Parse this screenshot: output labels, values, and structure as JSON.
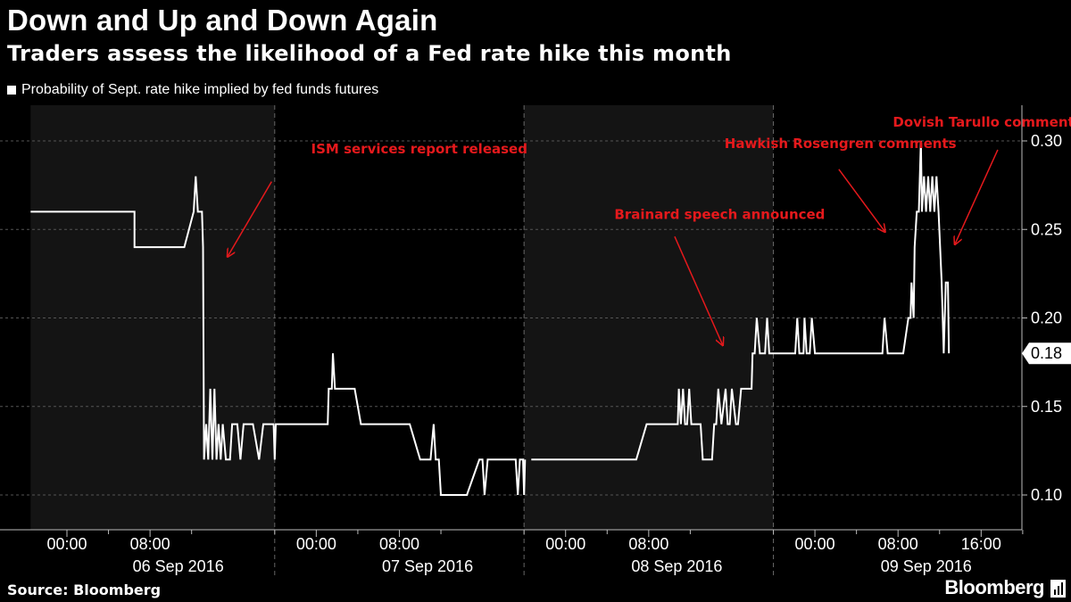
{
  "title": "Down and Up and Down Again",
  "subtitle": "Traders assess the likelihood of a Fed rate hike this month",
  "legend_label": "Probability of Sept. rate hike implied by fed funds futures",
  "source": "Source: Bloomberg",
  "brand": "Bloomberg",
  "colors": {
    "background": "#000000",
    "line": "#ffffff",
    "annotation": "#e5191c",
    "shade": "#141414"
  },
  "chart_data": {
    "type": "line",
    "title": "Down and Up and Down Again",
    "subtitle": "Traders assess the likelihood of a Fed rate hike this month",
    "xlabel": "",
    "ylabel": "",
    "ylim": [
      0.08,
      0.32
    ],
    "xlim_hours": [
      -3.5,
      98
    ],
    "yticks": [
      0.1,
      0.15,
      0.2,
      0.25,
      0.3
    ],
    "ytick_labels": [
      "0.10",
      "0.15",
      "0.20",
      "0.25",
      "0.30"
    ],
    "grid": "horizontal dashed",
    "legend_position": "top-left",
    "last_value_label": "0.18",
    "last_value": 0.18,
    "day_labels": [
      {
        "label": "06 Sep 2016",
        "center": 12
      },
      {
        "label": "07 Sep 2016",
        "center": 36
      },
      {
        "label": "08 Sep 2016",
        "center": 60
      },
      {
        "label": "09 Sep 2016",
        "center": 84
      }
    ],
    "time_ticks": [
      {
        "label": "00:00",
        "h": 0
      },
      {
        "label": "08:00",
        "h": 8
      },
      {
        "label": "00:00",
        "h": 24
      },
      {
        "label": "08:00",
        "h": 32
      },
      {
        "label": "00:00",
        "h": 48
      },
      {
        "label": "08:00",
        "h": 56
      },
      {
        "label": "00:00",
        "h": 72
      },
      {
        "label": "08:00",
        "h": 80
      },
      {
        "label": "16:00",
        "h": 88
      }
    ],
    "minor_ticks_h": [
      4,
      12,
      20,
      28,
      36,
      44,
      52,
      60,
      68,
      76,
      84,
      92
    ],
    "day_boundaries_h": [
      20,
      44,
      68
    ],
    "shaded_days": [
      [
        -3.5,
        20
      ],
      [
        44,
        68
      ]
    ],
    "series": [
      {
        "name": "Probability of Sept. rate hike implied by fed funds futures",
        "points": [
          [
            -3.5,
            0.26
          ],
          [
            6.5,
            0.26
          ],
          [
            6.5,
            0.24
          ],
          [
            11.3,
            0.24
          ],
          [
            12.2,
            0.26
          ],
          [
            12.4,
            0.28
          ],
          [
            12.6,
            0.26
          ],
          [
            13.0,
            0.26
          ],
          [
            13.1,
            0.24
          ],
          [
            13.2,
            0.12
          ],
          [
            13.4,
            0.14
          ],
          [
            13.6,
            0.12
          ],
          [
            13.8,
            0.16
          ],
          [
            14.0,
            0.12
          ],
          [
            14.2,
            0.16
          ],
          [
            14.4,
            0.12
          ],
          [
            14.6,
            0.14
          ],
          [
            14.8,
            0.12
          ],
          [
            15.0,
            0.14
          ],
          [
            15.3,
            0.12
          ],
          [
            15.7,
            0.12
          ],
          [
            15.9,
            0.14
          ],
          [
            16.4,
            0.14
          ],
          [
            16.7,
            0.12
          ],
          [
            17.0,
            0.14
          ],
          [
            17.5,
            0.14
          ],
          [
            17.9,
            0.14
          ],
          [
            18.5,
            0.12
          ],
          [
            18.9,
            0.14
          ],
          [
            19.5,
            0.14
          ],
          [
            19.9,
            0.14
          ],
          [
            20.0,
            0.12
          ],
          [
            20.1,
            0.14
          ],
          [
            25.1,
            0.14
          ],
          [
            25.2,
            0.16
          ],
          [
            25.5,
            0.16
          ],
          [
            25.6,
            0.18
          ],
          [
            25.8,
            0.16
          ],
          [
            27.7,
            0.16
          ],
          [
            28.3,
            0.14
          ],
          [
            33.0,
            0.14
          ],
          [
            34.0,
            0.12
          ],
          [
            35.0,
            0.12
          ],
          [
            35.3,
            0.14
          ],
          [
            35.5,
            0.12
          ],
          [
            35.8,
            0.12
          ],
          [
            36.0,
            0.1
          ],
          [
            38.5,
            0.1
          ],
          [
            39.7,
            0.12
          ],
          [
            40.0,
            0.12
          ],
          [
            40.2,
            0.1
          ],
          [
            40.5,
            0.12
          ],
          [
            43.2,
            0.12
          ],
          [
            43.4,
            0.1
          ],
          [
            43.6,
            0.12
          ],
          [
            43.9,
            0.12
          ],
          [
            44.0,
            0.1
          ],
          [
            44.1,
            0.12
          ],
          null,
          [
            44.7,
            0.12
          ],
          [
            54.8,
            0.12
          ],
          [
            55.8,
            0.14
          ],
          [
            58.8,
            0.14
          ],
          [
            58.9,
            0.16
          ],
          [
            59.1,
            0.14
          ],
          [
            59.3,
            0.16
          ],
          [
            59.5,
            0.14
          ],
          [
            59.7,
            0.14
          ],
          [
            59.9,
            0.16
          ],
          [
            60.1,
            0.14
          ],
          [
            61.0,
            0.14
          ],
          [
            61.2,
            0.12
          ],
          [
            62.1,
            0.12
          ],
          [
            62.3,
            0.14
          ],
          [
            62.5,
            0.14
          ],
          [
            62.7,
            0.16
          ],
          [
            63.0,
            0.14
          ],
          [
            63.4,
            0.16
          ],
          [
            63.6,
            0.14
          ],
          [
            63.8,
            0.14
          ],
          [
            64.0,
            0.16
          ],
          [
            64.4,
            0.14
          ],
          [
            64.6,
            0.14
          ],
          [
            64.9,
            0.16
          ],
          [
            65.9,
            0.16
          ],
          [
            66.0,
            0.18
          ],
          [
            66.2,
            0.18
          ],
          [
            66.4,
            0.2
          ],
          [
            66.7,
            0.18
          ],
          [
            67.2,
            0.18
          ],
          [
            67.4,
            0.2
          ],
          [
            67.6,
            0.18
          ],
          [
            70.1,
            0.18
          ],
          [
            70.3,
            0.2
          ],
          [
            70.5,
            0.18
          ],
          [
            70.9,
            0.18
          ],
          [
            71.0,
            0.2
          ],
          [
            71.2,
            0.18
          ],
          [
            71.5,
            0.18
          ],
          [
            71.7,
            0.2
          ],
          [
            72.0,
            0.18
          ],
          [
            78.5,
            0.18
          ],
          [
            78.7,
            0.2
          ],
          [
            79.0,
            0.18
          ],
          [
            80.5,
            0.18
          ],
          [
            81.0,
            0.2
          ],
          [
            81.2,
            0.2
          ],
          [
            81.3,
            0.22
          ],
          [
            81.5,
            0.2
          ],
          [
            81.6,
            0.24
          ],
          [
            81.8,
            0.26
          ],
          [
            82.0,
            0.26
          ],
          [
            82.2,
            0.3
          ],
          [
            82.3,
            0.26
          ],
          [
            82.5,
            0.28
          ],
          [
            82.7,
            0.26
          ],
          [
            82.9,
            0.28
          ],
          [
            83.1,
            0.26
          ],
          [
            83.3,
            0.28
          ],
          [
            83.5,
            0.26
          ],
          [
            83.7,
            0.28
          ],
          [
            83.9,
            0.26
          ],
          [
            84.2,
            0.22
          ],
          [
            84.4,
            0.18
          ],
          [
            84.6,
            0.22
          ],
          [
            84.8,
            0.22
          ],
          [
            84.9,
            0.18
          ]
        ]
      }
    ],
    "annotations": [
      {
        "text": "ISM services report released",
        "x": 23.5,
        "y": 0.293,
        "arrow_from": [
          19.7,
          0.277
        ],
        "arrow_to": [
          15.5,
          0.235
        ]
      },
      {
        "text": "Brainard speech announced",
        "x": 52.7,
        "y": 0.256,
        "arrow_from": [
          58.5,
          0.246
        ],
        "arrow_to": [
          63.1,
          0.185
        ]
      },
      {
        "text": "Hawkish Rosengren comments",
        "x": 63.3,
        "y": 0.296,
        "arrow_from": [
          74.3,
          0.284
        ],
        "arrow_to": [
          78.7,
          0.249
        ]
      },
      {
        "text": "Dovish Tarullo comments",
        "x": 79.5,
        "y": 0.308,
        "arrow_from": [
          89.6,
          0.295
        ],
        "arrow_to": [
          85.5,
          0.242
        ]
      }
    ]
  }
}
